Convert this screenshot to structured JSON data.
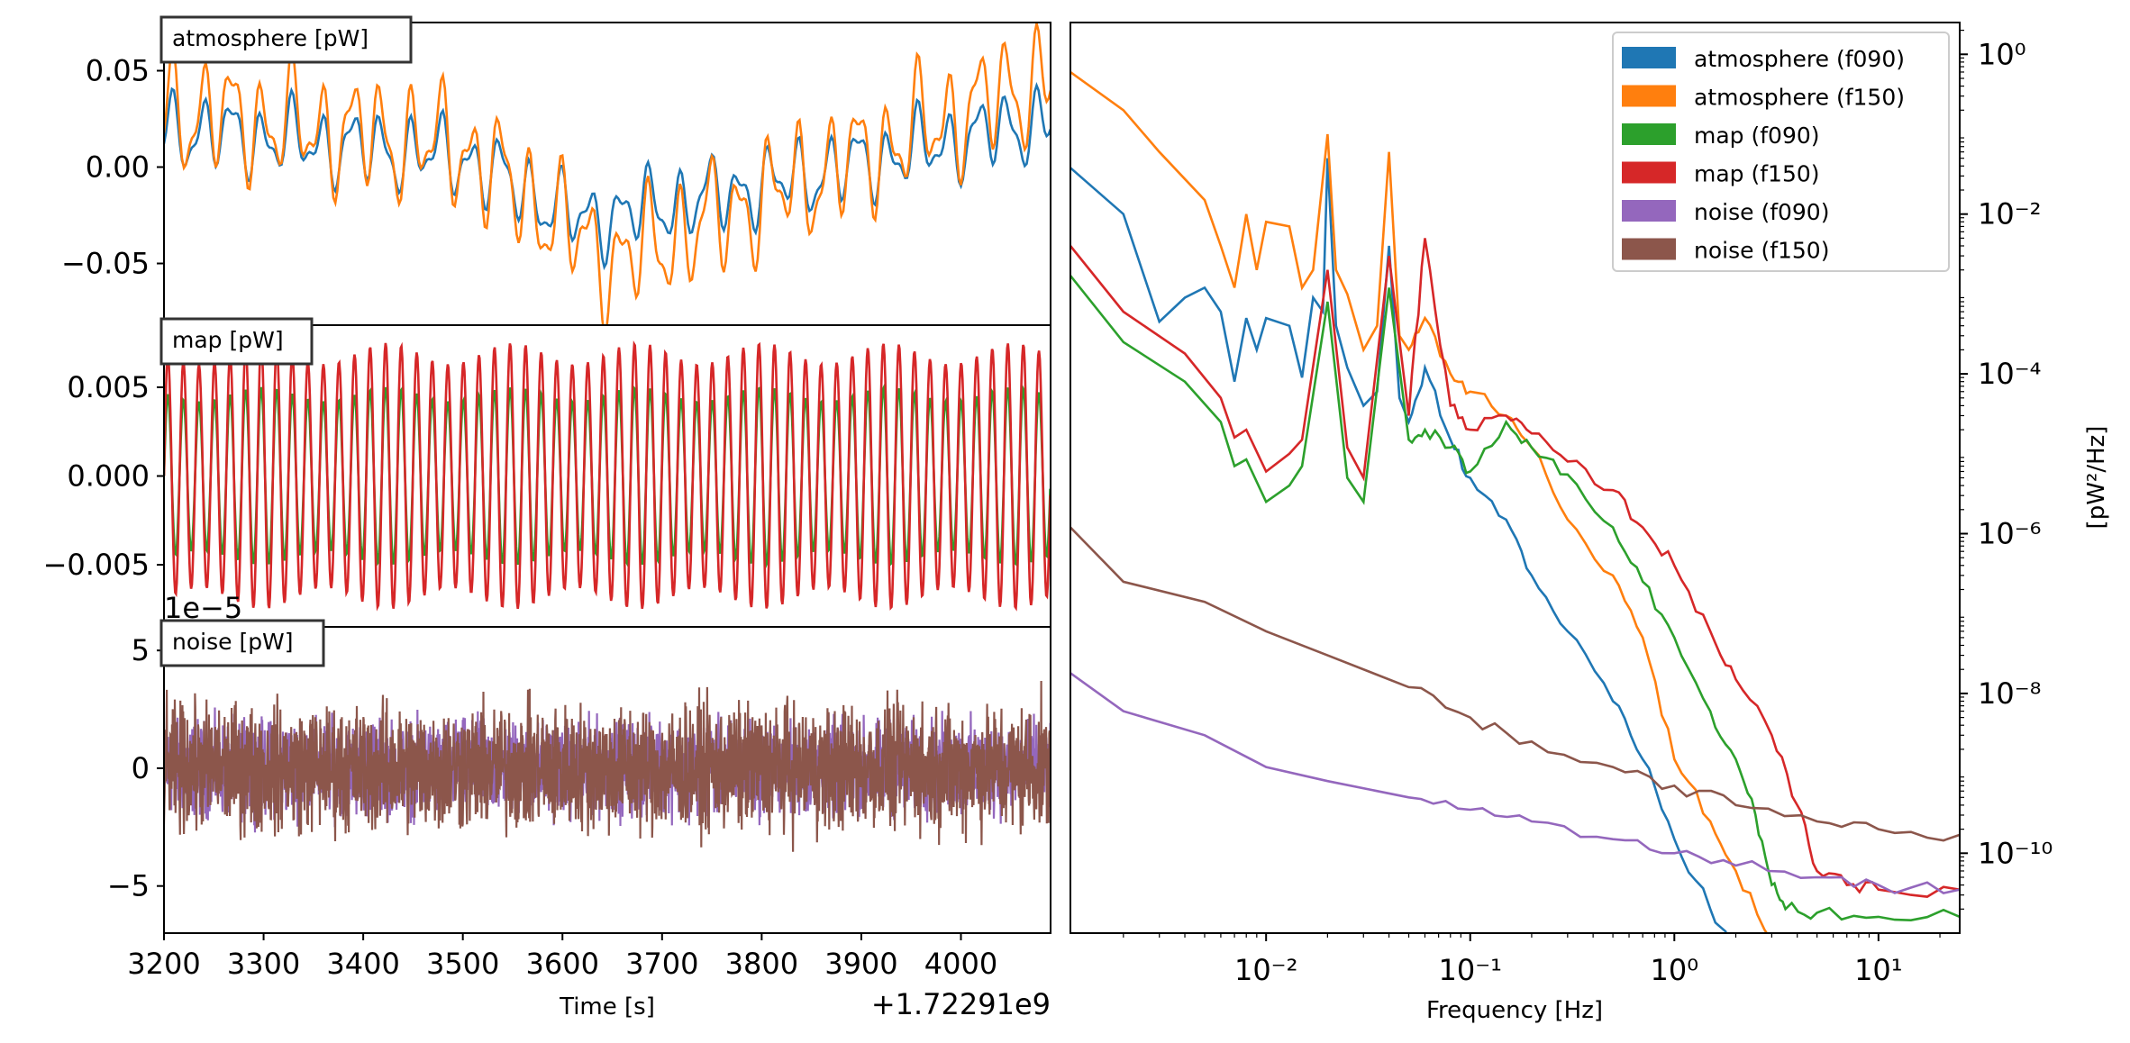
{
  "chart_data": [
    {
      "type": "line",
      "panel": "time-atmosphere",
      "label": "atmosphere [pW]",
      "xlim": [
        3200,
        4090
      ],
      "ylim": [
        -0.082,
        0.075
      ],
      "yticks": [
        {
          "value": 0.05,
          "label": "0.05"
        },
        {
          "value": 0.0,
          "label": "0.00"
        },
        {
          "value": -0.05,
          "label": "−0.05"
        }
      ],
      "series": [
        {
          "name": "atmosphere (f090)",
          "color": "#1f77b4",
          "amp": 0.018,
          "trend": [
            [
              3200,
              0.02
            ],
            [
              3500,
              0.005
            ],
            [
              3620,
              -0.028
            ],
            [
              3800,
              -0.01
            ],
            [
              4090,
              0.025
            ]
          ]
        },
        {
          "name": "atmosphere (f150)",
          "color": "#ff7f0e",
          "amp": 0.028,
          "trend": [
            [
              3200,
              0.03
            ],
            [
              3500,
              0.01
            ],
            [
              3650,
              -0.05
            ],
            [
              3820,
              -0.012
            ],
            [
              4090,
              0.048
            ]
          ]
        }
      ]
    },
    {
      "type": "line",
      "panel": "time-map",
      "label": "map [pW]",
      "xlim": [
        3200,
        4090
      ],
      "ylim": [
        -0.0085,
        0.0085
      ],
      "yticks": [
        {
          "value": 0.005,
          "label": "0.005"
        },
        {
          "value": 0.0,
          "label": "0.000"
        },
        {
          "value": -0.005,
          "label": "−0.005"
        }
      ],
      "series": [
        {
          "name": "map (f090)",
          "color": "#2ca02c",
          "amp": 0.005,
          "cycles": 57
        },
        {
          "name": "map (f150)",
          "color": "#d62728",
          "amp": 0.0075,
          "cycles": 57
        }
      ]
    },
    {
      "type": "line",
      "panel": "time-noise",
      "label": "noise [pW]",
      "offset_text": "1e−5",
      "xlim": [
        3200,
        4090
      ],
      "ylim": [
        -7,
        6
      ],
      "yticks": [
        {
          "value": 5,
          "label": "5"
        },
        {
          "value": 0,
          "label": "0"
        },
        {
          "value": -5,
          "label": "−5"
        }
      ],
      "xticks": [
        3200,
        3300,
        3400,
        3500,
        3600,
        3700,
        3800,
        3900,
        4000
      ],
      "xlabel": "Time [s]",
      "x_offset_text": "+1.72291e9",
      "series": [
        {
          "name": "noise (f090)",
          "color": "#9467bd",
          "amp": 1.8
        },
        {
          "name": "noise (f150)",
          "color": "#8c564b",
          "amp": 2.4
        }
      ]
    },
    {
      "type": "line",
      "panel": "psd",
      "xscale": "log",
      "yscale": "log",
      "xlim": [
        0.0011,
        25
      ],
      "ylim": [
        1e-11,
        2.5
      ],
      "xticks": [
        {
          "value": 0.01,
          "label": "10⁻²"
        },
        {
          "value": 0.1,
          "label": "10⁻¹"
        },
        {
          "value": 1,
          "label": "10⁰"
        },
        {
          "value": 10,
          "label": "10¹"
        }
      ],
      "yticks": [
        {
          "value": 1,
          "label": "10⁰"
        },
        {
          "value": 0.01,
          "label": "10⁻²"
        },
        {
          "value": 0.0001,
          "label": "10⁻⁴"
        },
        {
          "value": 1e-06,
          "label": "10⁻⁶"
        },
        {
          "value": 1e-08,
          "label": "10⁻⁸"
        },
        {
          "value": 1e-10,
          "label": "10⁻¹⁰"
        }
      ],
      "xlabel": "Frequency [Hz]",
      "ylabel": "[pW²/Hz]",
      "legend": "top-right",
      "series": [
        {
          "name": "atmosphere (f090)",
          "color": "#1f77b4",
          "points": [
            [
              0.0011,
              0.038
            ],
            [
              0.002,
              0.01
            ],
            [
              0.003,
              0.00045
            ],
            [
              0.004,
              0.0009
            ],
            [
              0.005,
              0.0012
            ],
            [
              0.006,
              0.0006
            ],
            [
              0.007,
              8e-05
            ],
            [
              0.008,
              0.0005
            ],
            [
              0.009,
              0.0002
            ],
            [
              0.01,
              0.0005
            ],
            [
              0.013,
              0.0004
            ],
            [
              0.015,
              9e-05
            ],
            [
              0.017,
              0.0009
            ],
            [
              0.019,
              0.0006
            ],
            [
              0.02,
              0.05
            ],
            [
              0.022,
              0.0004
            ],
            [
              0.025,
              0.00012
            ],
            [
              0.03,
              4e-05
            ],
            [
              0.035,
              6e-05
            ],
            [
              0.04,
              0.004
            ],
            [
              0.045,
              5e-05
            ],
            [
              0.05,
              2.5e-05
            ],
            [
              0.06,
              0.00012
            ],
            [
              0.08,
              1.5e-05
            ],
            [
              0.1,
              5e-06
            ],
            [
              0.15,
              1.5e-06
            ],
            [
              0.2,
              3e-07
            ],
            [
              0.3,
              6e-08
            ],
            [
              0.5,
              8e-09
            ],
            [
              0.7,
              1.5e-09
            ],
            [
              1,
              1.5e-10
            ],
            [
              1.5,
              2e-11
            ],
            [
              2,
              6e-12
            ]
          ]
        },
        {
          "name": "atmosphere (f150)",
          "color": "#ff7f0e",
          "points": [
            [
              0.0011,
              0.6
            ],
            [
              0.002,
              0.2
            ],
            [
              0.003,
              0.06
            ],
            [
              0.005,
              0.015
            ],
            [
              0.006,
              0.004
            ],
            [
              0.007,
              0.0012
            ],
            [
              0.008,
              0.01
            ],
            [
              0.009,
              0.002
            ],
            [
              0.01,
              0.008
            ],
            [
              0.013,
              0.007
            ],
            [
              0.015,
              0.0012
            ],
            [
              0.017,
              0.002
            ],
            [
              0.02,
              0.1
            ],
            [
              0.022,
              0.002
            ],
            [
              0.025,
              0.001
            ],
            [
              0.03,
              0.0002
            ],
            [
              0.035,
              0.0004
            ],
            [
              0.04,
              0.06
            ],
            [
              0.045,
              0.0003
            ],
            [
              0.05,
              0.0002
            ],
            [
              0.06,
              0.0005
            ],
            [
              0.08,
              0.0001
            ],
            [
              0.1,
              6e-05
            ],
            [
              0.15,
              3e-05
            ],
            [
              0.2,
              1.2e-05
            ],
            [
              0.3,
              1.5e-06
            ],
            [
              0.5,
              3e-07
            ],
            [
              0.7,
              5e-08
            ],
            [
              1,
              1.5e-09
            ],
            [
              1.5,
              2.5e-10
            ],
            [
              2,
              6e-11
            ],
            [
              3,
              8e-12
            ]
          ]
        },
        {
          "name": "map (f090)",
          "color": "#2ca02c",
          "points": [
            [
              0.0011,
              0.0017
            ],
            [
              0.002,
              0.00025
            ],
            [
              0.004,
              8e-05
            ],
            [
              0.006,
              2.5e-05
            ],
            [
              0.007,
              7e-06
            ],
            [
              0.008,
              8.5e-06
            ],
            [
              0.01,
              2.5e-06
            ],
            [
              0.013,
              4e-06
            ],
            [
              0.015,
              7e-06
            ],
            [
              0.02,
              0.0008
            ],
            [
              0.025,
              5e-06
            ],
            [
              0.03,
              2.5e-06
            ],
            [
              0.04,
              0.0012
            ],
            [
              0.05,
              1.5e-05
            ],
            [
              0.06,
              2e-05
            ],
            [
              0.08,
              1.2e-05
            ],
            [
              0.1,
              6e-06
            ],
            [
              0.15,
              2.5e-05
            ],
            [
              0.2,
              1.2e-05
            ],
            [
              0.3,
              5.5e-06
            ],
            [
              0.5,
              1.2e-06
            ],
            [
              0.7,
              2.5e-07
            ],
            [
              1,
              5e-08
            ],
            [
              1.5,
              6e-09
            ],
            [
              2,
              1.5e-09
            ],
            [
              2.5,
              3e-10
            ],
            [
              3,
              4e-11
            ],
            [
              3.5,
              2e-11
            ],
            [
              5,
              1.8e-11
            ],
            [
              10,
              1.6e-11
            ],
            [
              25,
              1.6e-11
            ]
          ]
        },
        {
          "name": "map (f150)",
          "color": "#d62728",
          "points": [
            [
              0.0011,
              0.004
            ],
            [
              0.002,
              0.0006
            ],
            [
              0.004,
              0.00018
            ],
            [
              0.006,
              5e-05
            ],
            [
              0.007,
              1.6e-05
            ],
            [
              0.008,
              2e-05
            ],
            [
              0.01,
              6e-06
            ],
            [
              0.013,
              1e-05
            ],
            [
              0.015,
              1.5e-05
            ],
            [
              0.02,
              0.002
            ],
            [
              0.025,
              1.2e-05
            ],
            [
              0.03,
              5e-06
            ],
            [
              0.04,
              0.003
            ],
            [
              0.05,
              3e-05
            ],
            [
              0.06,
              0.005
            ],
            [
              0.08,
              4e-05
            ],
            [
              0.1,
              2e-05
            ],
            [
              0.15,
              3e-05
            ],
            [
              0.2,
              1.8e-05
            ],
            [
              0.3,
              8e-06
            ],
            [
              0.5,
              3.5e-06
            ],
            [
              0.7,
              1.2e-06
            ],
            [
              1,
              4e-07
            ],
            [
              1.5,
              6e-08
            ],
            [
              2,
              1.5e-08
            ],
            [
              3,
              3e-09
            ],
            [
              4,
              4e-10
            ],
            [
              5,
              6e-11
            ],
            [
              7,
              4e-11
            ],
            [
              10,
              3.5e-11
            ],
            [
              25,
              3.5e-11
            ]
          ]
        },
        {
          "name": "noise (f090)",
          "color": "#9467bd",
          "points": [
            [
              0.0011,
              1.8e-08
            ],
            [
              0.002,
              6e-09
            ],
            [
              0.005,
              3e-09
            ],
            [
              0.01,
              1.2e-09
            ],
            [
              0.02,
              8e-10
            ],
            [
              0.05,
              5e-10
            ],
            [
              0.1,
              3.5e-10
            ],
            [
              0.2,
              2.5e-10
            ],
            [
              0.5,
              1.5e-10
            ],
            [
              1,
              1e-10
            ],
            [
              2,
              7e-11
            ],
            [
              5,
              5e-11
            ],
            [
              10,
              4e-11
            ],
            [
              25,
              3.5e-11
            ]
          ]
        },
        {
          "name": "noise (f150)",
          "color": "#8c564b",
          "points": [
            [
              0.0011,
              1.2e-06
            ],
            [
              0.002,
              2.5e-07
            ],
            [
              0.005,
              1.4e-07
            ],
            [
              0.01,
              6e-08
            ],
            [
              0.02,
              3e-08
            ],
            [
              0.05,
              1.2e-08
            ],
            [
              0.1,
              5e-09
            ],
            [
              0.2,
              2.5e-09
            ],
            [
              0.5,
              1.2e-09
            ],
            [
              1,
              7e-10
            ],
            [
              2,
              4e-10
            ],
            [
              5,
              2.5e-10
            ],
            [
              10,
              2e-10
            ],
            [
              25,
              1.7e-10
            ]
          ]
        }
      ]
    }
  ]
}
